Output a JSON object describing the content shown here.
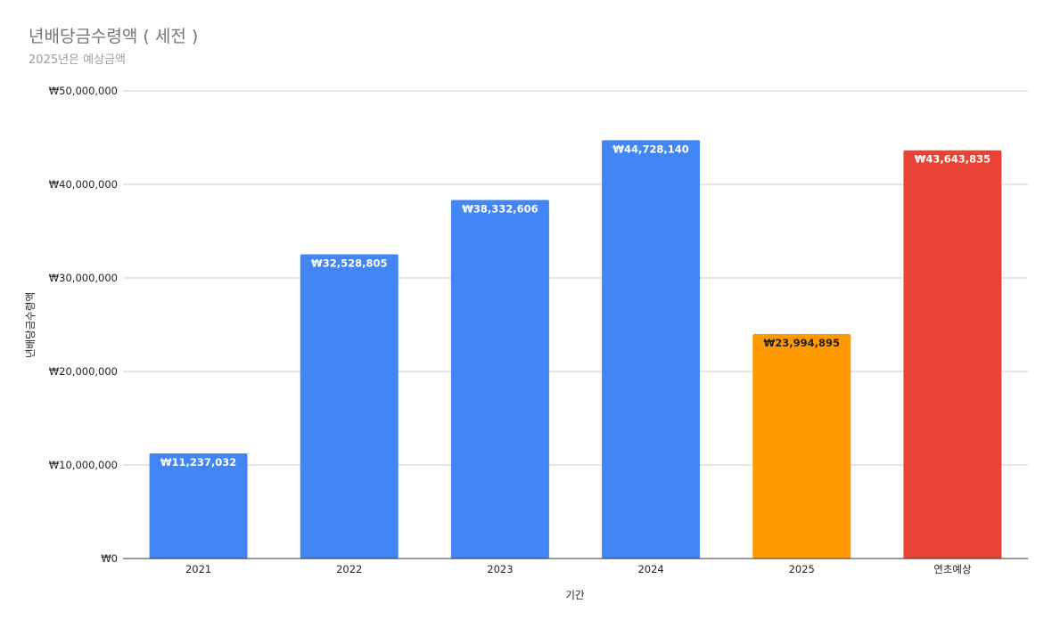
{
  "chart_data": {
    "type": "bar",
    "title": "년배당금수령액 ( 세전 )",
    "subtitle": "2025년은 예상금액",
    "xlabel": "기간",
    "ylabel": "년배당금수령액",
    "categories": [
      "2021",
      "2022",
      "2023",
      "2024",
      "2025",
      "연초예상"
    ],
    "values": [
      11237032,
      32528805,
      38332606,
      44728140,
      23994895,
      43643835
    ],
    "data_labels": [
      "₩11,237,032",
      "₩32,528,805",
      "₩38,332,606",
      "₩44,728,140",
      "₩23,994,895",
      "₩43,643,835"
    ],
    "bar_colors": [
      "#4285f4",
      "#4285f4",
      "#4285f4",
      "#4285f4",
      "#ff9900",
      "#ea4335"
    ],
    "label_colors": [
      "#ffffff",
      "#ffffff",
      "#ffffff",
      "#ffffff",
      "#222222",
      "#ffffff"
    ],
    "ylim": [
      0,
      50000000
    ],
    "y_ticks": [
      0,
      10000000,
      20000000,
      30000000,
      40000000,
      50000000
    ],
    "y_tick_labels": [
      "₩0",
      "₩10,000,000",
      "₩20,000,000",
      "₩30,000,000",
      "₩40,000,000",
      "₩50,000,000"
    ],
    "grid": true,
    "legend": "none"
  }
}
